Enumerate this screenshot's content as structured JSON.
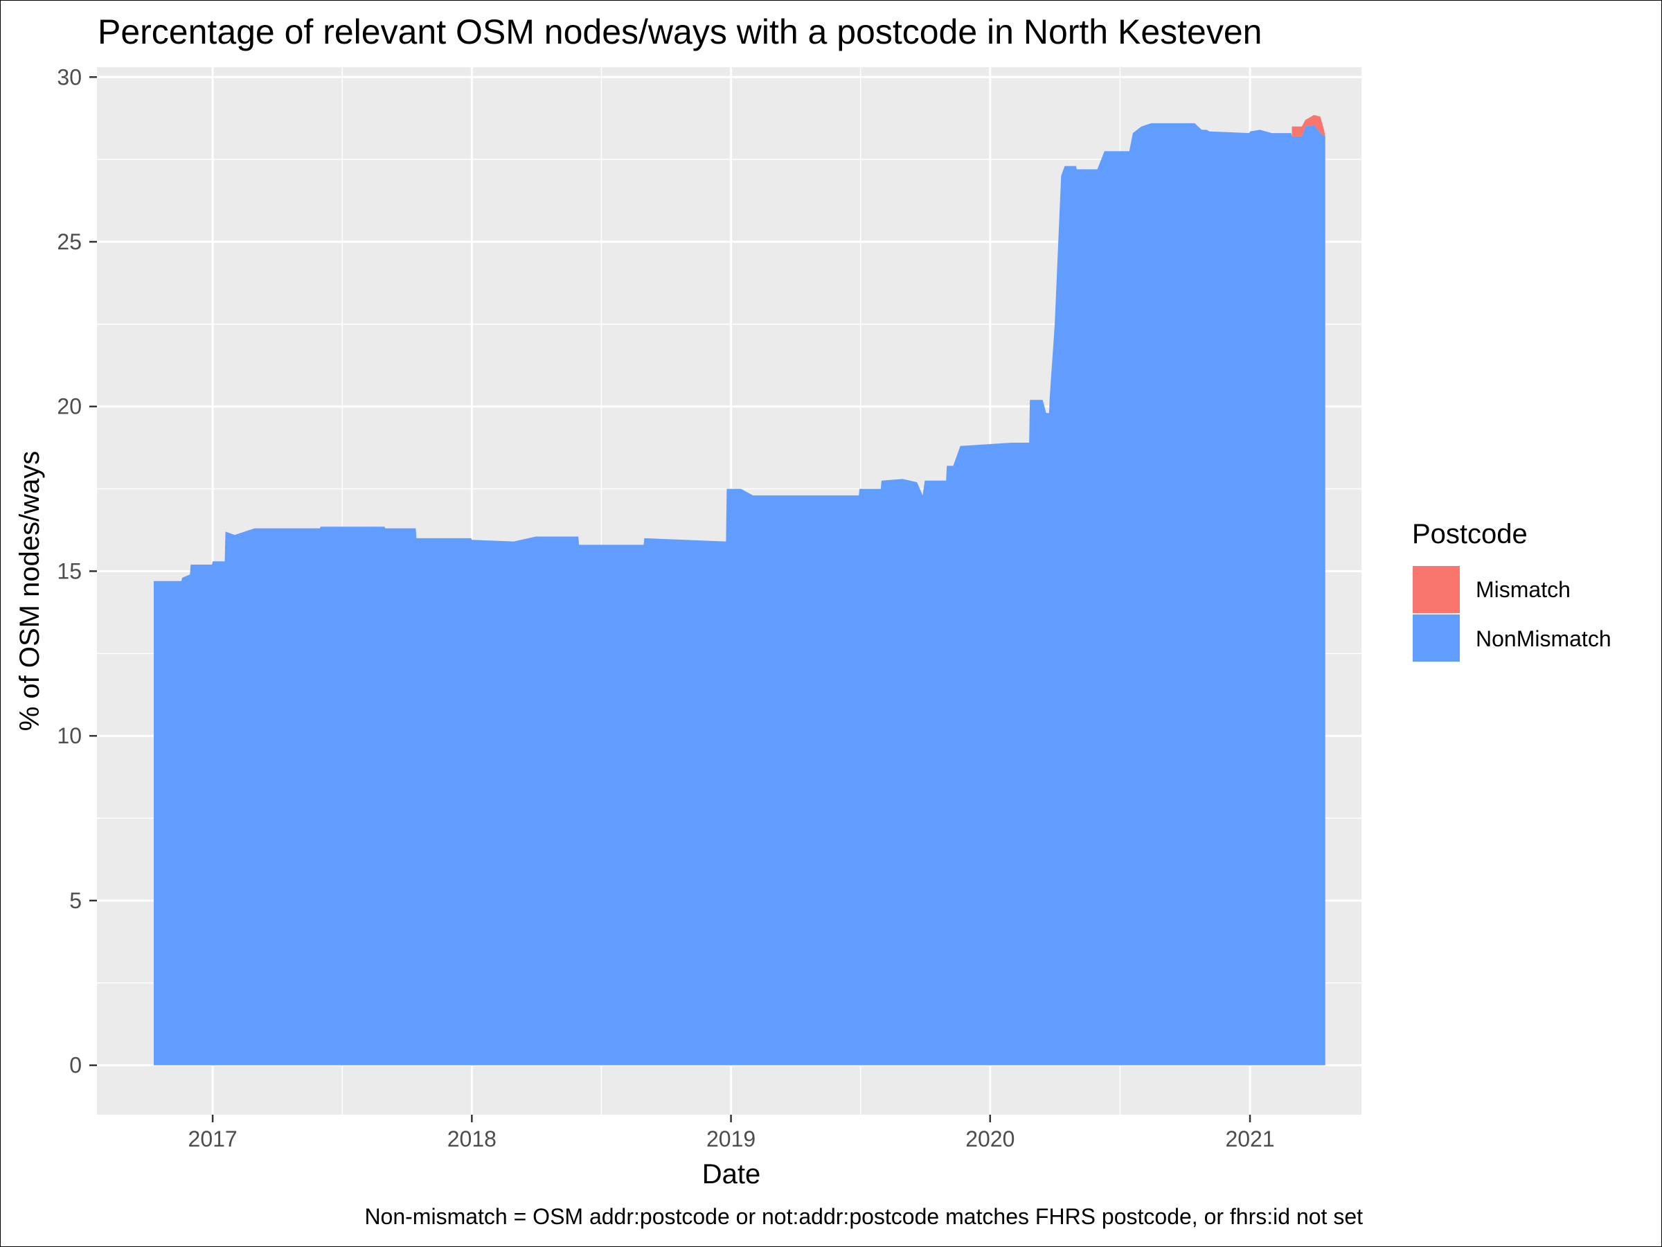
{
  "chart_data": {
    "type": "area",
    "stacked": true,
    "title": "Percentage of relevant OSM nodes/ways with a postcode in North Kesteven",
    "xlabel": "Date",
    "ylabel": "% of OSM nodes/ways",
    "caption": "Non-mismatch = OSM addr:postcode or not:addr:postcode matches FHRS postcode, or fhrs:id not set",
    "legend": {
      "title": "Postcode",
      "position": "right",
      "entries": [
        {
          "name": "Mismatch",
          "color": "#F8766D"
        },
        {
          "name": "NonMismatch",
          "color": "#619CFF"
        }
      ]
    },
    "xlim": [
      "2016-07-22",
      "2021-06-07"
    ],
    "ylim": [
      -1.5,
      30.3
    ],
    "x_ticks": [
      {
        "date": "2017-01-01",
        "label": "2017"
      },
      {
        "date": "2018-01-01",
        "label": "2018"
      },
      {
        "date": "2019-01-01",
        "label": "2019"
      },
      {
        "date": "2020-01-01",
        "label": "2020"
      },
      {
        "date": "2021-01-01",
        "label": "2021"
      }
    ],
    "y_ticks": [
      0,
      5,
      10,
      15,
      20,
      25,
      30
    ],
    "grid": true,
    "series": [
      {
        "name": "NonMismatch",
        "color": "#619CFF",
        "points": [
          [
            "2016-10-10",
            14.7
          ],
          [
            "2016-11-18",
            14.7
          ],
          [
            "2016-11-19",
            14.8
          ],
          [
            "2016-11-30",
            14.9
          ],
          [
            "2016-12-01",
            15.2
          ],
          [
            "2016-12-31",
            15.2
          ],
          [
            "2017-01-01",
            15.3
          ],
          [
            "2017-01-18",
            15.3
          ],
          [
            "2017-01-19",
            16.2
          ],
          [
            "2017-02-01",
            16.1
          ],
          [
            "2017-03-01",
            16.3
          ],
          [
            "2017-06-01",
            16.3
          ],
          [
            "2017-06-02",
            16.35
          ],
          [
            "2017-08-31",
            16.35
          ],
          [
            "2017-09-01",
            16.3
          ],
          [
            "2017-10-14",
            16.3
          ],
          [
            "2017-10-15",
            16.0
          ],
          [
            "2017-12-31",
            16.0
          ],
          [
            "2018-01-01",
            15.95
          ],
          [
            "2018-03-01",
            15.9
          ],
          [
            "2018-04-01",
            16.05
          ],
          [
            "2018-05-31",
            16.05
          ],
          [
            "2018-06-01",
            15.8
          ],
          [
            "2018-08-31",
            15.8
          ],
          [
            "2018-09-01",
            16.0
          ],
          [
            "2018-12-25",
            15.9
          ],
          [
            "2018-12-26",
            17.5
          ],
          [
            "2019-01-15",
            17.5
          ],
          [
            "2019-02-01",
            17.3
          ],
          [
            "2019-06-30",
            17.3
          ],
          [
            "2019-07-01",
            17.5
          ],
          [
            "2019-07-31",
            17.5
          ],
          [
            "2019-08-01",
            17.75
          ],
          [
            "2019-08-31",
            17.8
          ],
          [
            "2019-09-20",
            17.7
          ],
          [
            "2019-09-28",
            17.3
          ],
          [
            "2019-10-01",
            17.75
          ],
          [
            "2019-10-31",
            17.75
          ],
          [
            "2019-11-01",
            18.2
          ],
          [
            "2019-11-10",
            18.2
          ],
          [
            "2019-11-15",
            18.5
          ],
          [
            "2019-11-20",
            18.8
          ],
          [
            "2020-01-31",
            18.9
          ],
          [
            "2020-02-25",
            18.9
          ],
          [
            "2020-02-26",
            20.2
          ],
          [
            "2020-03-15",
            20.2
          ],
          [
            "2020-03-20",
            19.8
          ],
          [
            "2020-03-24",
            19.8
          ],
          [
            "2020-03-25",
            20.3
          ],
          [
            "2020-04-01",
            22.5
          ],
          [
            "2020-04-05",
            24.5
          ],
          [
            "2020-04-10",
            27.0
          ],
          [
            "2020-04-15",
            27.3
          ],
          [
            "2020-05-01",
            27.3
          ],
          [
            "2020-05-02",
            27.2
          ],
          [
            "2020-05-31",
            27.2
          ],
          [
            "2020-06-10",
            27.75
          ],
          [
            "2020-07-15",
            27.75
          ],
          [
            "2020-07-20",
            28.3
          ],
          [
            "2020-08-01",
            28.5
          ],
          [
            "2020-08-15",
            28.6
          ],
          [
            "2020-10-15",
            28.6
          ],
          [
            "2020-10-25",
            28.4
          ],
          [
            "2020-11-01",
            28.4
          ],
          [
            "2020-11-05",
            28.35
          ],
          [
            "2020-12-31",
            28.3
          ],
          [
            "2021-01-01",
            28.35
          ],
          [
            "2021-01-15",
            28.4
          ],
          [
            "2021-02-01",
            28.3
          ],
          [
            "2021-02-28",
            28.3
          ],
          [
            "2021-03-01",
            28.2
          ],
          [
            "2021-03-15",
            28.2
          ],
          [
            "2021-03-20",
            28.5
          ],
          [
            "2021-04-01",
            28.55
          ],
          [
            "2021-04-10",
            28.3
          ],
          [
            "2021-04-17",
            28.2
          ]
        ]
      },
      {
        "name": "Mismatch",
        "color": "#F8766D",
        "points": [
          [
            "2021-03-01",
            0.3
          ],
          [
            "2021-03-15",
            0.3
          ],
          [
            "2021-03-20",
            0.2
          ],
          [
            "2021-04-01",
            0.3
          ],
          [
            "2021-04-10",
            0.5
          ],
          [
            "2021-04-15",
            0.2
          ],
          [
            "2021-04-17",
            0.0
          ]
        ]
      }
    ]
  }
}
